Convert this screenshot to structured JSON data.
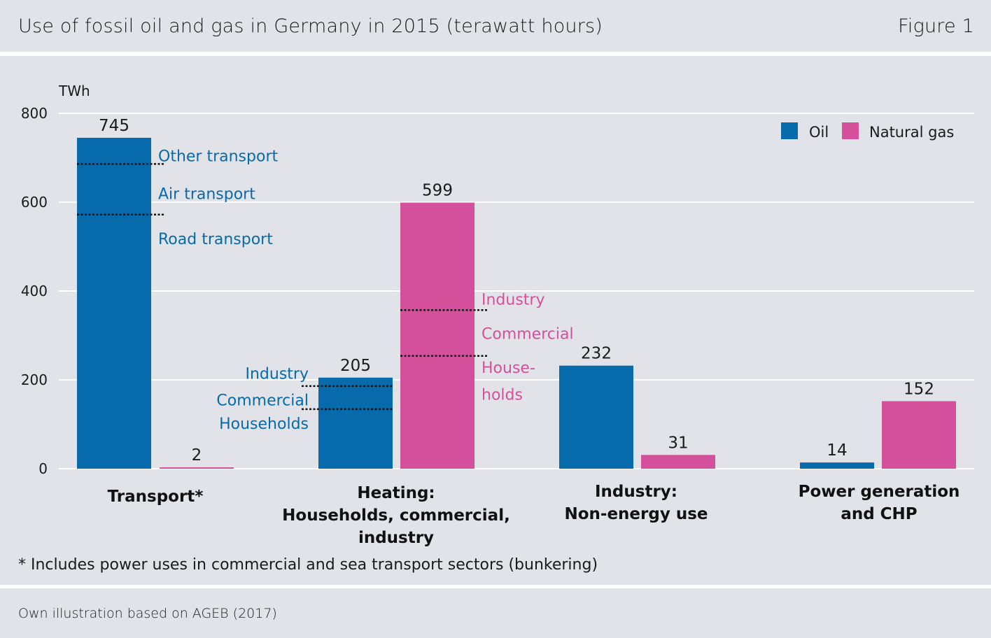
{
  "header": {
    "title": "Use of fossil oil and gas in Germany in 2015 (terawatt hours)",
    "figure_label": "Figure 1"
  },
  "footnote": "* Includes power uses in commercial and sea transport sectors (bunkering)",
  "source": "Own illustration based on AGEB (2017)",
  "colors": {
    "oil": "#066aab",
    "gas": "#d4509a",
    "grid": "#ffffff",
    "band": "#e2e3e8"
  },
  "chart_data": {
    "type": "bar",
    "title": "Use of fossil oil and gas in Germany in 2015 (terawatt hours)",
    "ylabel": "TWh",
    "ylim": [
      0,
      800
    ],
    "yticks": [
      0,
      200,
      400,
      600,
      800
    ],
    "grid": true,
    "legend_position": "top-right",
    "categories": [
      [
        "Transport*"
      ],
      [
        "Heating:",
        "Households, commercial,",
        "industry"
      ],
      [
        "Industry:",
        "Non-energy use"
      ],
      [
        "Power generation",
        "and CHP"
      ]
    ],
    "series": [
      {
        "name": "Oil",
        "color": "#066aab",
        "values": [
          745,
          205,
          232,
          14
        ]
      },
      {
        "name": "Natural gas",
        "color": "#d4509a",
        "values": [
          2,
          599,
          31,
          152
        ]
      }
    ],
    "annotations": [
      {
        "category": 0,
        "series": 0,
        "side": "right",
        "color": "#066aab",
        "dividers": [
          686,
          572
        ],
        "labels": [
          {
            "text": "Other transport",
            "y": 705
          },
          {
            "text": "Air transport",
            "y": 620
          },
          {
            "text": "Road transport",
            "y": 518
          }
        ]
      },
      {
        "category": 1,
        "series": 0,
        "side": "left",
        "color": "#066aab",
        "dividers": [
          186,
          134
        ],
        "labels": [
          {
            "text": "Industry",
            "y": 215
          },
          {
            "text": "Commercial",
            "y": 155
          },
          {
            "text": "Households",
            "y": 102
          }
        ]
      },
      {
        "category": 1,
        "series": 1,
        "side": "right",
        "color": "#d4509a",
        "dividers": [
          357,
          254
        ],
        "labels": [
          {
            "text": "Industry",
            "y": 382
          },
          {
            "text": "Commercial",
            "y": 305
          },
          {
            "text": "House-",
            "y": 228
          },
          {
            "text": "holds",
            "y": 168
          }
        ]
      }
    ]
  }
}
